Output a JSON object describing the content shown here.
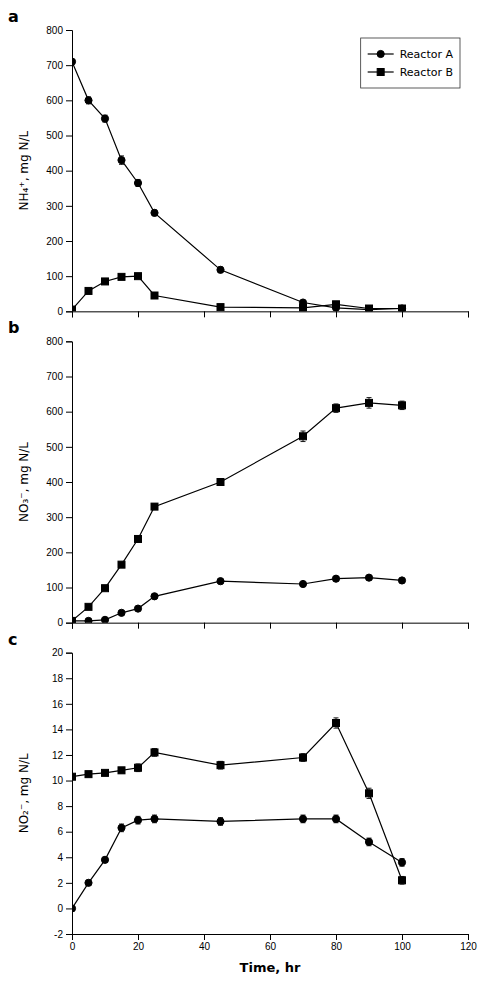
{
  "chart_data": [
    {
      "type": "line",
      "title": "a",
      "ylabel": "NH₄⁺, mg N/L",
      "x": [
        0,
        5,
        10,
        15,
        20,
        25,
        45,
        70,
        80,
        90,
        100
      ],
      "xlim": [
        0,
        120
      ],
      "xticks": [
        0,
        20,
        40,
        60,
        80,
        100,
        120
      ],
      "ylim": [
        0,
        800
      ],
      "yticks": [
        0,
        100,
        200,
        300,
        400,
        500,
        600,
        700,
        800
      ],
      "tick_labels": "y",
      "legend": "upper right",
      "series": [
        {
          "name": "Reactor A",
          "color": "#000000",
          "marker": "circle",
          "values": [
            710,
            600,
            548,
            430,
            365,
            280,
            118,
            25,
            10,
            5,
            8
          ],
          "yerr": [
            5,
            10,
            10,
            12,
            10,
            8,
            8,
            5,
            5,
            3,
            3
          ]
        },
        {
          "name": "Reactor B",
          "color": "#000000",
          "marker": "square",
          "values": [
            5,
            58,
            85,
            98,
            100,
            45,
            12,
            10,
            20,
            8,
            8
          ],
          "yerr": [
            2,
            3,
            3,
            3,
            4,
            3,
            2,
            2,
            5,
            2,
            2
          ]
        }
      ]
    },
    {
      "type": "line",
      "title": "b",
      "ylabel": "NO₃⁻, mg N/L",
      "x": [
        0,
        5,
        10,
        15,
        20,
        25,
        45,
        70,
        80,
        90,
        100
      ],
      "xlim": [
        0,
        120
      ],
      "xticks": [
        0,
        20,
        40,
        60,
        80,
        100,
        120
      ],
      "ylim": [
        0,
        800
      ],
      "yticks": [
        0,
        100,
        200,
        300,
        400,
        500,
        600,
        700,
        800
      ],
      "tick_labels": "y",
      "series": [
        {
          "color": "#000000",
          "marker": "circle",
          "values": [
            5,
            5,
            8,
            28,
            40,
            75,
            118,
            110,
            125,
            128,
            120
          ],
          "yerr": [
            2,
            2,
            2,
            3,
            3,
            4,
            5,
            4,
            5,
            5,
            4
          ]
        },
        {
          "color": "#000000",
          "marker": "square",
          "values": [
            5,
            45,
            98,
            165,
            238,
            330,
            400,
            530,
            610,
            625,
            618
          ],
          "yerr": [
            2,
            3,
            4,
            5,
            6,
            8,
            8,
            15,
            12,
            15,
            12
          ]
        }
      ]
    },
    {
      "type": "line",
      "title": "c",
      "ylabel": "NO₂⁻, mg N/L",
      "xlabel": "Time, hr",
      "x": [
        0,
        5,
        10,
        15,
        20,
        25,
        45,
        70,
        80,
        90,
        100
      ],
      "xlim": [
        0,
        120
      ],
      "xticks": [
        0,
        20,
        40,
        60,
        80,
        100,
        120
      ],
      "ylim": [
        -2,
        20
      ],
      "yticks": [
        -2,
        0,
        2,
        4,
        6,
        8,
        10,
        12,
        14,
        16,
        18,
        20
      ],
      "series": [
        {
          "color": "#000000",
          "marker": "circle",
          "values": [
            0,
            2.0,
            3.8,
            6.3,
            6.9,
            7.0,
            6.8,
            7.0,
            7.0,
            5.2,
            3.6
          ],
          "yerr": [
            0.1,
            0.2,
            0.2,
            0.3,
            0.3,
            0.3,
            0.3,
            0.3,
            0.3,
            0.3,
            0.3
          ]
        },
        {
          "color": "#000000",
          "marker": "square",
          "values": [
            10.3,
            10.5,
            10.6,
            10.8,
            11.0,
            12.2,
            11.2,
            11.8,
            14.5,
            9.0,
            2.2
          ],
          "yerr": [
            0.2,
            0.2,
            0.2,
            0.2,
            0.3,
            0.3,
            0.3,
            0.3,
            0.4,
            0.4,
            0.3
          ]
        }
      ]
    }
  ]
}
